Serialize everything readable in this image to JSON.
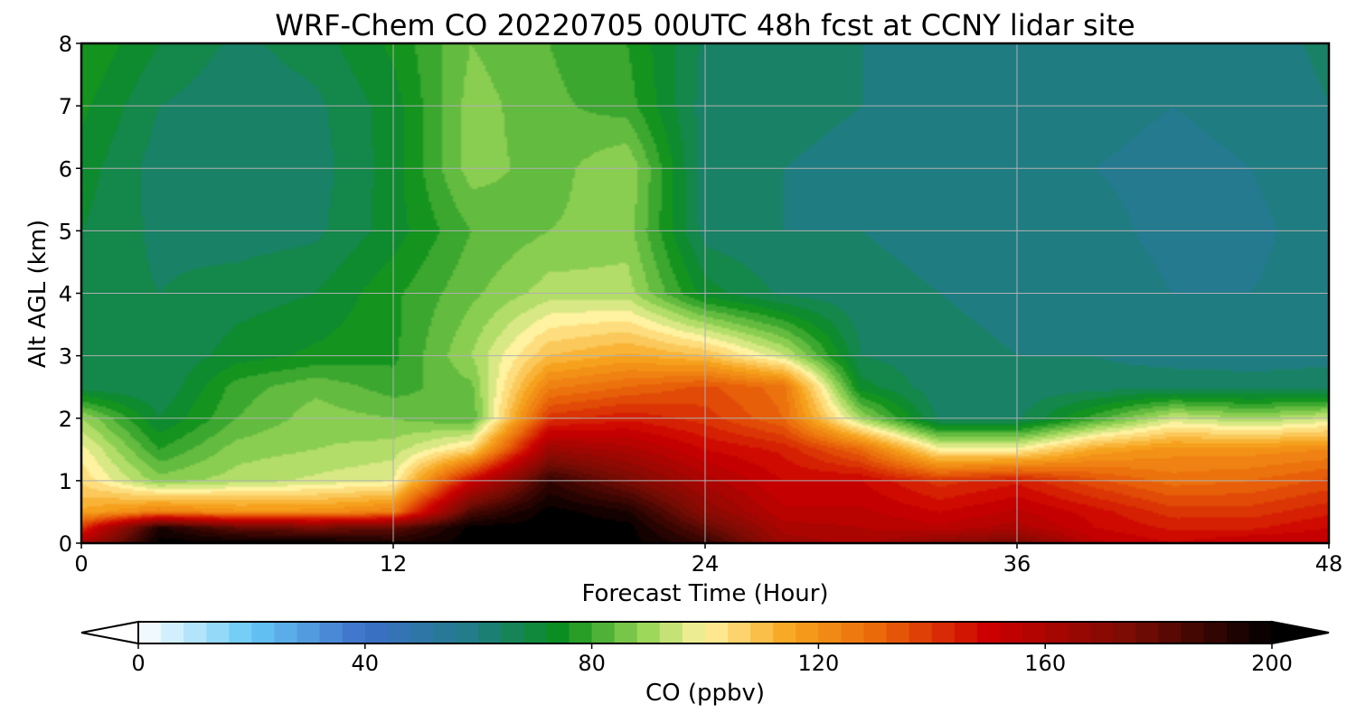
{
  "chart_data": {
    "type": "heatmap",
    "title": "WRF-Chem CO  20220705 00UTC 48h fcst at CCNY lidar site",
    "xlabel": "Forecast Time (Hour)",
    "ylabel": "Alt AGL (km)",
    "xlim": [
      0,
      48
    ],
    "ylim": [
      0,
      8
    ],
    "x_ticks": [
      0,
      12,
      24,
      36,
      48
    ],
    "y_ticks": [
      0,
      1,
      2,
      3,
      4,
      5,
      6,
      7,
      8
    ],
    "grid": true,
    "times_h": [
      0,
      3,
      6,
      9,
      12,
      15,
      18,
      21,
      24,
      27,
      30,
      33,
      36,
      39,
      42,
      45,
      48
    ],
    "altitudes_km": [
      0,
      0.25,
      0.5,
      1,
      1.5,
      2,
      2.5,
      3,
      4,
      5,
      6,
      7,
      8
    ],
    "co_ppbv": [
      [
        160,
        200,
        200,
        200,
        195,
        200,
        200,
        200,
        190,
        165,
        160,
        170,
        175,
        155,
        150,
        155,
        155
      ],
      [
        140,
        195,
        180,
        175,
        180,
        200,
        200,
        200,
        180,
        160,
        158,
        155,
        160,
        150,
        145,
        145,
        150
      ],
      [
        115,
        125,
        120,
        120,
        125,
        185,
        200,
        195,
        170,
        155,
        155,
        150,
        155,
        148,
        140,
        140,
        145
      ],
      [
        105,
        88,
        92,
        95,
        98,
        150,
        190,
        175,
        160,
        150,
        150,
        140,
        145,
        135,
        128,
        130,
        135
      ],
      [
        100,
        78,
        88,
        90,
        92,
        105,
        165,
        160,
        150,
        145,
        130,
        100,
        100,
        115,
        120,
        120,
        122
      ],
      [
        90,
        70,
        82,
        88,
        86,
        82,
        140,
        145,
        140,
        130,
        90,
        65,
        65,
        80,
        95,
        90,
        95
      ],
      [
        68,
        66,
        80,
        85,
        80,
        85,
        125,
        130,
        135,
        128,
        72,
        63,
        63,
        64,
        65,
        64,
        64
      ],
      [
        66,
        66,
        72,
        75,
        77,
        90,
        110,
        115,
        110,
        95,
        66,
        63,
        62,
        62,
        60,
        60,
        61
      ],
      [
        68,
        66,
        68,
        70,
        77,
        85,
        92,
        92,
        72,
        65,
        63,
        62,
        61,
        60,
        58,
        58,
        60
      ],
      [
        70,
        65,
        64,
        65,
        72,
        82,
        86,
        88,
        64,
        62,
        62,
        61,
        60,
        59,
        57,
        57,
        60
      ],
      [
        72,
        64,
        63,
        64,
        72,
        88,
        84,
        90,
        63,
        62,
        61,
        60,
        59,
        58,
        57,
        58,
        61
      ],
      [
        75,
        66,
        63,
        65,
        72,
        88,
        83,
        80,
        64,
        63,
        62,
        61,
        60,
        59,
        58,
        59,
        62
      ],
      [
        78,
        70,
        65,
        68,
        75,
        86,
        82,
        78,
        65,
        63,
        62,
        62,
        61,
        60,
        59,
        60,
        63
      ]
    ],
    "colorbar": {
      "label": "CO  (ppbv)",
      "min": 0,
      "max": 200,
      "ticks": [
        0,
        40,
        80,
        120,
        160,
        200
      ],
      "extend": "both",
      "stops": [
        {
          "v": 0,
          "c": "#ffffff"
        },
        {
          "v": 20,
          "c": "#66c8f5"
        },
        {
          "v": 40,
          "c": "#3d6ec9"
        },
        {
          "v": 60,
          "c": "#1f7d82"
        },
        {
          "v": 75,
          "c": "#0a8f1a"
        },
        {
          "v": 90,
          "c": "#9ed85a"
        },
        {
          "v": 100,
          "c": "#fff2a0"
        },
        {
          "v": 115,
          "c": "#f7a51e"
        },
        {
          "v": 130,
          "c": "#ea6a0a"
        },
        {
          "v": 150,
          "c": "#cc0000"
        },
        {
          "v": 175,
          "c": "#7a0c04"
        },
        {
          "v": 200,
          "c": "#000000"
        }
      ]
    }
  }
}
